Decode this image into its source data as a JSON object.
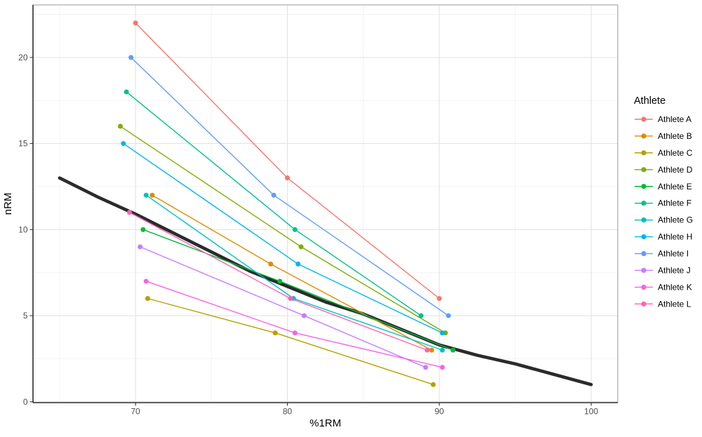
{
  "figure": {
    "background": "#FFFFFF"
  },
  "style": {
    "grid_major": "#E3E3E3",
    "grid_minor": "#F2F2F2",
    "panel_border": "#ABABAB",
    "axis_line": "#333333",
    "tick_color": "#333333",
    "tick_label_color": "#4D4D4D",
    "text_color": "#000000",
    "curve_color": "#2B2B2B"
  },
  "axes": {
    "x": {
      "title": "%1RM",
      "tick_labels": [
        "70",
        "80",
        "90",
        "100"
      ]
    },
    "y": {
      "title": "nRM",
      "tick_labels": [
        "0",
        "5",
        "10",
        "15",
        "20"
      ]
    }
  },
  "legend": {
    "title": "Athlete",
    "position": "right"
  },
  "chart_data": {
    "type": "line",
    "title": "",
    "xlabel": "%1RM",
    "ylabel": "nRM",
    "xlim": [
      63.25,
      101.75
    ],
    "ylim": [
      -0.05,
      23.05
    ],
    "x_ticks": [
      70,
      80,
      90,
      100
    ],
    "x_minor_ticks": [
      65,
      75,
      85,
      95
    ],
    "y_ticks": [
      0,
      5,
      10,
      15,
      20
    ],
    "y_minor_ticks": [
      2.5,
      7.5,
      12.5,
      17.5,
      22.5
    ],
    "grid": true,
    "legend_position": "right",
    "series": [
      {
        "name": "Athlete A",
        "color": "#F8766D",
        "points": [
          [
            70.0,
            22
          ],
          [
            80.0,
            13
          ],
          [
            90.0,
            6
          ]
        ]
      },
      {
        "name": "Athlete B",
        "color": "#DE8C00",
        "points": [
          [
            71.1,
            12
          ],
          [
            78.9,
            8
          ],
          [
            89.5,
            3
          ]
        ]
      },
      {
        "name": "Athlete C",
        "color": "#B79F00",
        "points": [
          [
            70.8,
            6
          ],
          [
            79.2,
            4
          ],
          [
            89.6,
            1
          ]
        ]
      },
      {
        "name": "Athlete D",
        "color": "#7CAE00",
        "points": [
          [
            69.0,
            16
          ],
          [
            80.9,
            9
          ],
          [
            90.4,
            4
          ]
        ]
      },
      {
        "name": "Athlete E",
        "color": "#00BA38",
        "points": [
          [
            70.5,
            10
          ],
          [
            79.5,
            7
          ],
          [
            90.9,
            3
          ]
        ]
      },
      {
        "name": "Athlete F",
        "color": "#00C08B",
        "points": [
          [
            69.4,
            18
          ],
          [
            80.5,
            10
          ],
          [
            88.8,
            5
          ]
        ]
      },
      {
        "name": "Athlete G",
        "color": "#00BFC4",
        "points": [
          [
            70.7,
            12
          ],
          [
            80.4,
            6
          ],
          [
            90.2,
            3
          ]
        ]
      },
      {
        "name": "Athlete H",
        "color": "#00B4F0",
        "points": [
          [
            69.2,
            15
          ],
          [
            80.7,
            8
          ],
          [
            90.2,
            4
          ]
        ]
      },
      {
        "name": "Athlete I",
        "color": "#619CFF",
        "points": [
          [
            69.7,
            20
          ],
          [
            79.1,
            12
          ],
          [
            90.6,
            5
          ]
        ]
      },
      {
        "name": "Athlete J",
        "color": "#C77CFF",
        "points": [
          [
            70.3,
            9
          ],
          [
            81.1,
            5
          ],
          [
            89.1,
            2
          ]
        ]
      },
      {
        "name": "Athlete K",
        "color": "#F564E2",
        "points": [
          [
            70.7,
            7
          ],
          [
            80.5,
            4
          ],
          [
            90.2,
            2
          ]
        ]
      },
      {
        "name": "Athlete L",
        "color": "#FF64B0",
        "points": [
          [
            69.6,
            11
          ],
          [
            80.2,
            6
          ],
          [
            89.2,
            3
          ]
        ]
      }
    ],
    "model_curve": {
      "name": "fitted nRM-%1RM curve",
      "color": "#2B2B2B",
      "points": [
        [
          65,
          13.0
        ],
        [
          67.5,
          11.9
        ],
        [
          70,
          10.9
        ],
        [
          72.5,
          9.8
        ],
        [
          75,
          8.7
        ],
        [
          77.5,
          7.6
        ],
        [
          80,
          6.7
        ],
        [
          82.5,
          5.8
        ],
        [
          85,
          5.1
        ],
        [
          87.5,
          4.2
        ],
        [
          90,
          3.3
        ],
        [
          92.5,
          2.7
        ],
        [
          95,
          2.2
        ],
        [
          97.5,
          1.6
        ],
        [
          100,
          1.0
        ]
      ]
    }
  }
}
